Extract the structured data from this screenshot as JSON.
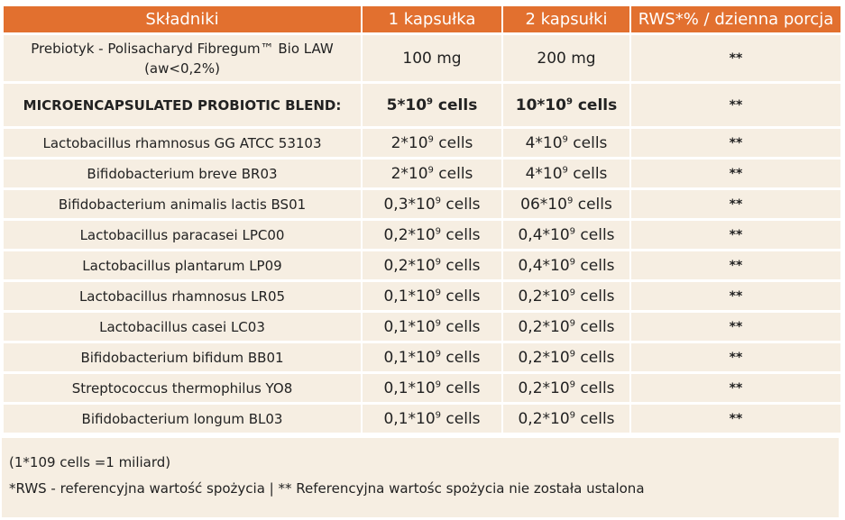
{
  "header": {
    "col_ingredient": "Składniki",
    "col_one_capsule": "1 kapsułka",
    "col_two_capsules": "2 kapsułki",
    "col_rws": "RWS*% / dzienna porcja"
  },
  "prebiotic": {
    "name_line1": "Prebiotyk - Polisacharyd Fibregum™ Bio LAW",
    "name_line2": "(aw<0,2%)",
    "one": "100 mg",
    "two": "200 mg",
    "rws": "**"
  },
  "blend": {
    "name": "MICROENCAPSULATED PROBIOTIC BLEND:",
    "one": {
      "pre": "5*10",
      "exp": "9",
      "post": " cells"
    },
    "two": {
      "pre": "10*10",
      "exp": "9",
      "post": " cells"
    },
    "rws": "**"
  },
  "strains": [
    {
      "name": "Lactobacillus rhamnosus GG ATCC 53103",
      "one": {
        "pre": "2*10",
        "exp": "9",
        "post": " cells"
      },
      "two": {
        "pre": "4*10",
        "exp": "9",
        "post": " cells"
      },
      "rws": "**"
    },
    {
      "name": "Bifidobacterium breve BR03",
      "one": {
        "pre": "2*10",
        "exp": "9",
        "post": " cells"
      },
      "two": {
        "pre": "4*10",
        "exp": "9",
        "post": " cells"
      },
      "rws": "**"
    },
    {
      "name": "Bifidobacterium animalis lactis BS01",
      "one": {
        "pre": "0,3*10",
        "exp": "9",
        "post": " cells"
      },
      "two": {
        "pre": "06*10",
        "exp": "9",
        "post": " cells"
      },
      "rws": "**"
    },
    {
      "name": "Lactobacillus paracasei LPC00",
      "one": {
        "pre": "0,2*10",
        "exp": "9",
        "post": " cells"
      },
      "two": {
        "pre": "0,4*10",
        "exp": "9",
        "post": " cells"
      },
      "rws": "**"
    },
    {
      "name": "Lactobacillus plantarum LP09",
      "one": {
        "pre": "0,2*10",
        "exp": "9",
        "post": " cells"
      },
      "two": {
        "pre": "0,4*10",
        "exp": "9",
        "post": " cells"
      },
      "rws": "**"
    },
    {
      "name": "Lactobacillus rhamnosus LR05",
      "one": {
        "pre": "0,1*10",
        "exp": "9",
        "post": " cells"
      },
      "two": {
        "pre": "0,2*10",
        "exp": "9",
        "post": " cells"
      },
      "rws": "**"
    },
    {
      "name": "Lactobacillus casei LC03",
      "one": {
        "pre": "0,1*10",
        "exp": "9",
        "post": " cells"
      },
      "two": {
        "pre": "0,2*10",
        "exp": "9",
        "post": " cells"
      },
      "rws": "**"
    },
    {
      "name": "Bifidobacterium bifidum BB01",
      "one": {
        "pre": "0,1*10",
        "exp": "9",
        "post": " cells"
      },
      "two": {
        "pre": "0,2*10",
        "exp": "9",
        "post": " cells"
      },
      "rws": "**"
    },
    {
      "name": "Streptococcus thermophilus YO8",
      "one": {
        "pre": "0,1*10",
        "exp": "9",
        "post": " cells"
      },
      "two": {
        "pre": "0,2*10",
        "exp": "9",
        "post": " cells"
      },
      "rws": "**"
    },
    {
      "name": "Bifidobacterium longum BL03",
      "one": {
        "pre": "0,1*10",
        "exp": "9",
        "post": " cells"
      },
      "two": {
        "pre": "0,2*10",
        "exp": "9",
        "post": " cells"
      },
      "rws": "**"
    }
  ],
  "notes": {
    "line1": "(1*109 cells =1 miliard)",
    "line2": "*RWS - referencyjna wartość spożycia | ** Referencyjna wartośc spożycia nie została ustalona"
  },
  "colors": {
    "header_bg": "#e2702f",
    "row_bg": "#f6eee2"
  }
}
